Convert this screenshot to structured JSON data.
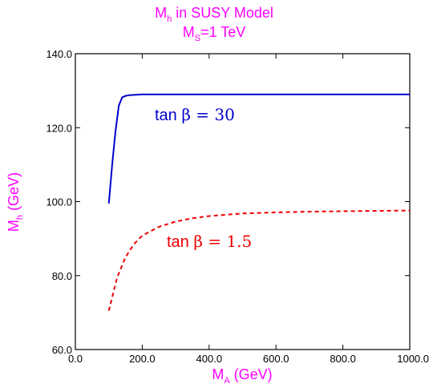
{
  "chart_data": {
    "type": "line",
    "title_main": "M",
    "title_sub": "h",
    "title_rest": " in SUSY Model",
    "subtitle_main": "M",
    "subtitle_sub": "S",
    "subtitle_rest": "=1 TeV",
    "xlabel_main": "M",
    "xlabel_sub": "A",
    "xlabel_rest": " (GeV)",
    "ylabel_main": "M",
    "ylabel_sub": "h",
    "ylabel_rest": " (GeV)",
    "xlim": [
      0,
      1000
    ],
    "ylim": [
      60,
      140
    ],
    "x_ticks": [
      0,
      200,
      400,
      600,
      800,
      1000
    ],
    "x_tick_labels": [
      "0.0",
      "200.0",
      "400.0",
      "600.0",
      "800.0",
      "1000.0"
    ],
    "y_ticks": [
      60,
      80,
      100,
      120,
      140
    ],
    "y_tick_labels": [
      "60.0",
      "80.0",
      "100.0",
      "120.0",
      "140.0"
    ],
    "grid": false,
    "series": [
      {
        "label_prefix": "tan ",
        "label_greek": "β",
        "label_suffix": " = 30",
        "color": "#0000cc",
        "style": "solid",
        "x": [
          100,
          110,
          120,
          130,
          140,
          150,
          160,
          180,
          200,
          250,
          300,
          400,
          500,
          600,
          700,
          800,
          900,
          1000
        ],
        "y": [
          99.5,
          110,
          119,
          126,
          128.2,
          128.6,
          128.8,
          128.9,
          129,
          129,
          129,
          129,
          129,
          129,
          129,
          129,
          129,
          129
        ]
      },
      {
        "label_prefix": "tan ",
        "label_greek": "β",
        "label_suffix": " = 1.5",
        "color": "#ee0000",
        "style": "dashed",
        "x": [
          100,
          125,
          150,
          175,
          200,
          250,
          300,
          350,
          400,
          500,
          600,
          700,
          800,
          900,
          1000
        ],
        "y": [
          70.5,
          79.5,
          85,
          88.5,
          90.8,
          93.2,
          94.6,
          95.5,
          96.1,
          96.8,
          97.1,
          97.3,
          97.4,
          97.5,
          97.6
        ]
      }
    ]
  }
}
